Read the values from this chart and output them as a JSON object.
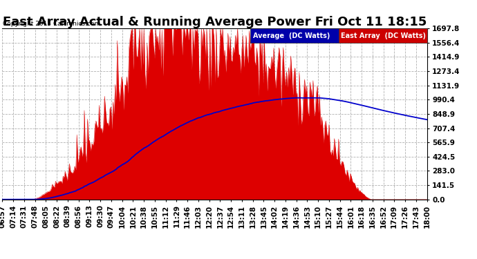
{
  "title": "East Array Actual & Running Average Power Fri Oct 11 18:15",
  "copyright": "Copyright 2013 Cartronics.com",
  "legend_labels": [
    "Average  (DC Watts)",
    "East Array  (DC Watts)"
  ],
  "ymax": 1697.8,
  "yticks": [
    0.0,
    141.5,
    283.0,
    424.5,
    565.9,
    707.4,
    848.9,
    990.4,
    1131.9,
    1273.4,
    1414.9,
    1556.4,
    1697.8
  ],
  "bg_color": "#ffffff",
  "plot_bg_color": "#ffffff",
  "grid_color": "#b0b0b0",
  "area_color": "#dd0000",
  "line_color": "#0000cc",
  "title_fontsize": 13,
  "tick_fontsize": 7.5,
  "num_points": 400,
  "x_labels": [
    "06:57",
    "07:14",
    "07:31",
    "07:48",
    "08:05",
    "08:22",
    "08:39",
    "08:56",
    "09:13",
    "09:30",
    "09:47",
    "10:04",
    "10:21",
    "10:38",
    "10:55",
    "11:12",
    "11:29",
    "11:46",
    "12:03",
    "12:20",
    "12:37",
    "12:54",
    "13:11",
    "13:28",
    "13:45",
    "14:02",
    "14:19",
    "14:36",
    "14:53",
    "15:10",
    "15:27",
    "15:44",
    "16:01",
    "16:18",
    "16:35",
    "16:52",
    "17:09",
    "17:26",
    "17:43",
    "18:00"
  ]
}
